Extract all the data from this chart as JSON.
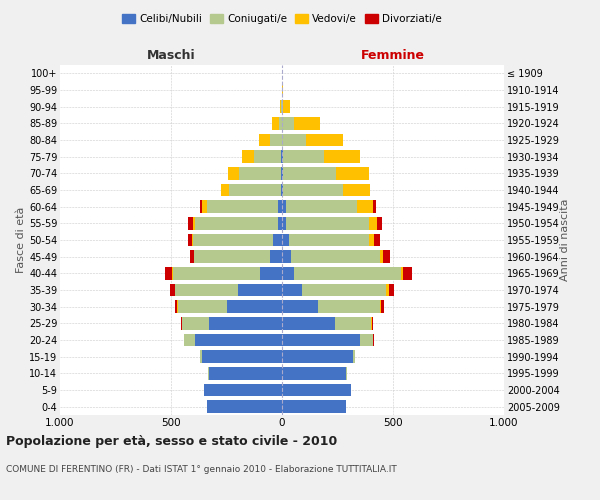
{
  "age_groups": [
    "0-4",
    "5-9",
    "10-14",
    "15-19",
    "20-24",
    "25-29",
    "30-34",
    "35-39",
    "40-44",
    "45-49",
    "50-54",
    "55-59",
    "60-64",
    "65-69",
    "70-74",
    "75-79",
    "80-84",
    "85-89",
    "90-94",
    "95-99",
    "100+"
  ],
  "birth_years": [
    "2005-2009",
    "2000-2004",
    "1995-1999",
    "1990-1994",
    "1985-1989",
    "1980-1984",
    "1975-1979",
    "1970-1974",
    "1965-1969",
    "1960-1964",
    "1955-1959",
    "1950-1954",
    "1945-1949",
    "1940-1944",
    "1935-1939",
    "1930-1934",
    "1925-1929",
    "1920-1924",
    "1915-1919",
    "1910-1914",
    "≤ 1909"
  ],
  "colors": {
    "celibe": "#4472c4",
    "coniugato": "#b5c98e",
    "vedovo": "#ffc000",
    "divorziato": "#cc0000"
  },
  "males": {
    "celibe": [
      340,
      350,
      330,
      360,
      390,
      330,
      250,
      200,
      100,
      55,
      40,
      20,
      20,
      5,
      5,
      5,
      0,
      0,
      0,
      0,
      0
    ],
    "coniugato": [
      0,
      0,
      5,
      10,
      50,
      120,
      220,
      280,
      390,
      340,
      360,
      370,
      320,
      235,
      190,
      120,
      55,
      15,
      5,
      0,
      0
    ],
    "vedovo": [
      0,
      0,
      0,
      0,
      0,
      2,
      2,
      3,
      5,
      3,
      5,
      10,
      20,
      35,
      50,
      55,
      50,
      30,
      5,
      0,
      0
    ],
    "divorziato": [
      0,
      0,
      0,
      0,
      0,
      5,
      10,
      20,
      30,
      15,
      20,
      25,
      10,
      0,
      0,
      0,
      0,
      0,
      0,
      0,
      0
    ]
  },
  "females": {
    "nubile": [
      290,
      310,
      290,
      320,
      350,
      240,
      160,
      90,
      55,
      40,
      30,
      20,
      20,
      5,
      5,
      5,
      0,
      0,
      0,
      0,
      0
    ],
    "coniugata": [
      0,
      0,
      5,
      10,
      60,
      160,
      280,
      380,
      480,
      400,
      360,
      370,
      320,
      270,
      240,
      185,
      110,
      55,
      5,
      0,
      0
    ],
    "vedova": [
      0,
      0,
      0,
      0,
      0,
      5,
      5,
      10,
      10,
      15,
      25,
      40,
      70,
      120,
      145,
      160,
      165,
      115,
      30,
      3,
      2
    ],
    "divorziata": [
      0,
      0,
      0,
      0,
      5,
      5,
      15,
      25,
      40,
      30,
      25,
      20,
      15,
      3,
      3,
      3,
      0,
      0,
      0,
      0,
      0
    ]
  },
  "xlim": 1000,
  "title": "Popolazione per età, sesso e stato civile - 2010",
  "subtitle": "COMUNE DI FERENTINO (FR) - Dati ISTAT 1° gennaio 2010 - Elaborazione TUTTITALIA.IT",
  "ylabel_left": "Fasce di età",
  "ylabel_right": "Anni di nascita",
  "xlabel_left": "Maschi",
  "xlabel_right": "Femmine",
  "header_color_maschi": "#333333",
  "header_color_femmine": "#cc0000",
  "bg_color": "#f0f0f0",
  "plot_bg_color": "#ffffff"
}
